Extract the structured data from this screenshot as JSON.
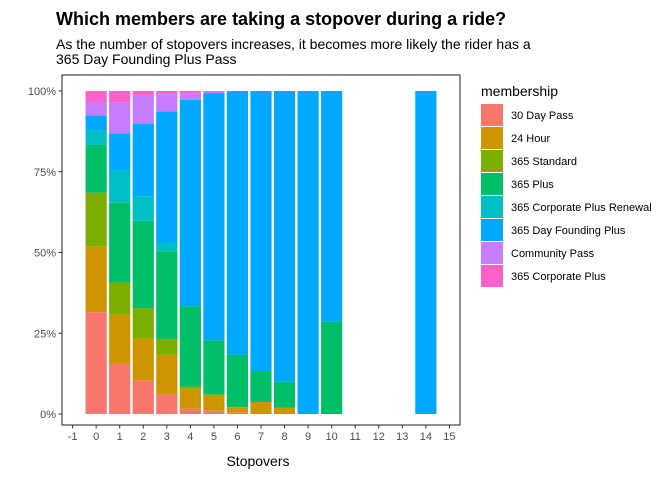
{
  "chart_data": {
    "type": "bar",
    "stacked": "percent",
    "title": "Which members are taking a stopover during a ride?",
    "subtitle_lines": [
      "As the number of stopovers increases, it becomes more likely the rider has a",
      "365 Day Founding Plus Pass"
    ],
    "xlabel": "Stopovers",
    "ylabel": "",
    "xlim": [
      -1,
      15
    ],
    "x_ticks": [
      "-1",
      "0",
      "1",
      "2",
      "3",
      "4",
      "5",
      "6",
      "7",
      "8",
      "9",
      "10",
      "11",
      "12",
      "13",
      "14",
      "15"
    ],
    "y_ticks": [
      "0%",
      "25%",
      "50%",
      "75%",
      "100%"
    ],
    "grid": false,
    "legend": {
      "title": "membership",
      "position": "right",
      "entries": [
        {
          "name": "30 Day Pass",
          "color": "#F8766D"
        },
        {
          "name": "24 Hour",
          "color": "#CD9600"
        },
        {
          "name": "365 Standard",
          "color": "#7CAE00"
        },
        {
          "name": "365 Plus",
          "color": "#00BE67"
        },
        {
          "name": "365 Corporate Plus Renewal",
          "color": "#00BFC4"
        },
        {
          "name": "365 Day Founding Plus",
          "color": "#00A9FF"
        },
        {
          "name": "Community Pass",
          "color": "#C77CFF"
        },
        {
          "name": "365 Corporate Plus",
          "color": "#FF61CC"
        }
      ]
    },
    "bars": [
      {
        "x": 0,
        "shares": [
          31.5,
          20.3,
          16.7,
          14.8,
          4.5,
          4.6,
          4.2,
          3.4
        ]
      },
      {
        "x": 1,
        "shares": [
          15.5,
          15.2,
          10.0,
          24.7,
          10.0,
          11.5,
          9.6,
          3.5
        ]
      },
      {
        "x": 2,
        "shares": [
          10.3,
          13.0,
          9.5,
          27.0,
          7.5,
          22.6,
          8.6,
          1.5
        ]
      },
      {
        "x": 3,
        "shares": [
          6.0,
          12.3,
          4.9,
          27.2,
          2.7,
          40.6,
          5.3,
          1.0
        ]
      },
      {
        "x": 4,
        "shares": [
          1.6,
          6.2,
          0.7,
          24.9,
          0.0,
          63.9,
          2.0,
          0.7
        ]
      },
      {
        "x": 5,
        "shares": [
          1.0,
          4.6,
          0.5,
          16.7,
          0.0,
          76.6,
          0.3,
          0.3
        ]
      },
      {
        "x": 6,
        "shares": [
          0.5,
          1.6,
          0.0,
          16.2,
          0.0,
          81.7,
          0.0,
          0.0
        ]
      },
      {
        "x": 7,
        "shares": [
          0.0,
          3.7,
          0.0,
          9.6,
          0.0,
          86.7,
          0.0,
          0.0
        ]
      },
      {
        "x": 8,
        "shares": [
          0.0,
          1.9,
          0.0,
          8.1,
          0.0,
          90.0,
          0.0,
          0.0
        ]
      },
      {
        "x": 9,
        "shares": [
          0.0,
          0.0,
          0.0,
          0.0,
          0.0,
          100.0,
          0.0,
          0.0
        ]
      },
      {
        "x": 10,
        "shares": [
          0.0,
          0.0,
          0.0,
          28.6,
          0.0,
          71.4,
          0.0,
          0.0
        ]
      },
      {
        "x": 14,
        "shares": [
          0.0,
          0.0,
          0.0,
          0.0,
          0.0,
          100.0,
          0.0,
          0.0
        ]
      }
    ]
  }
}
